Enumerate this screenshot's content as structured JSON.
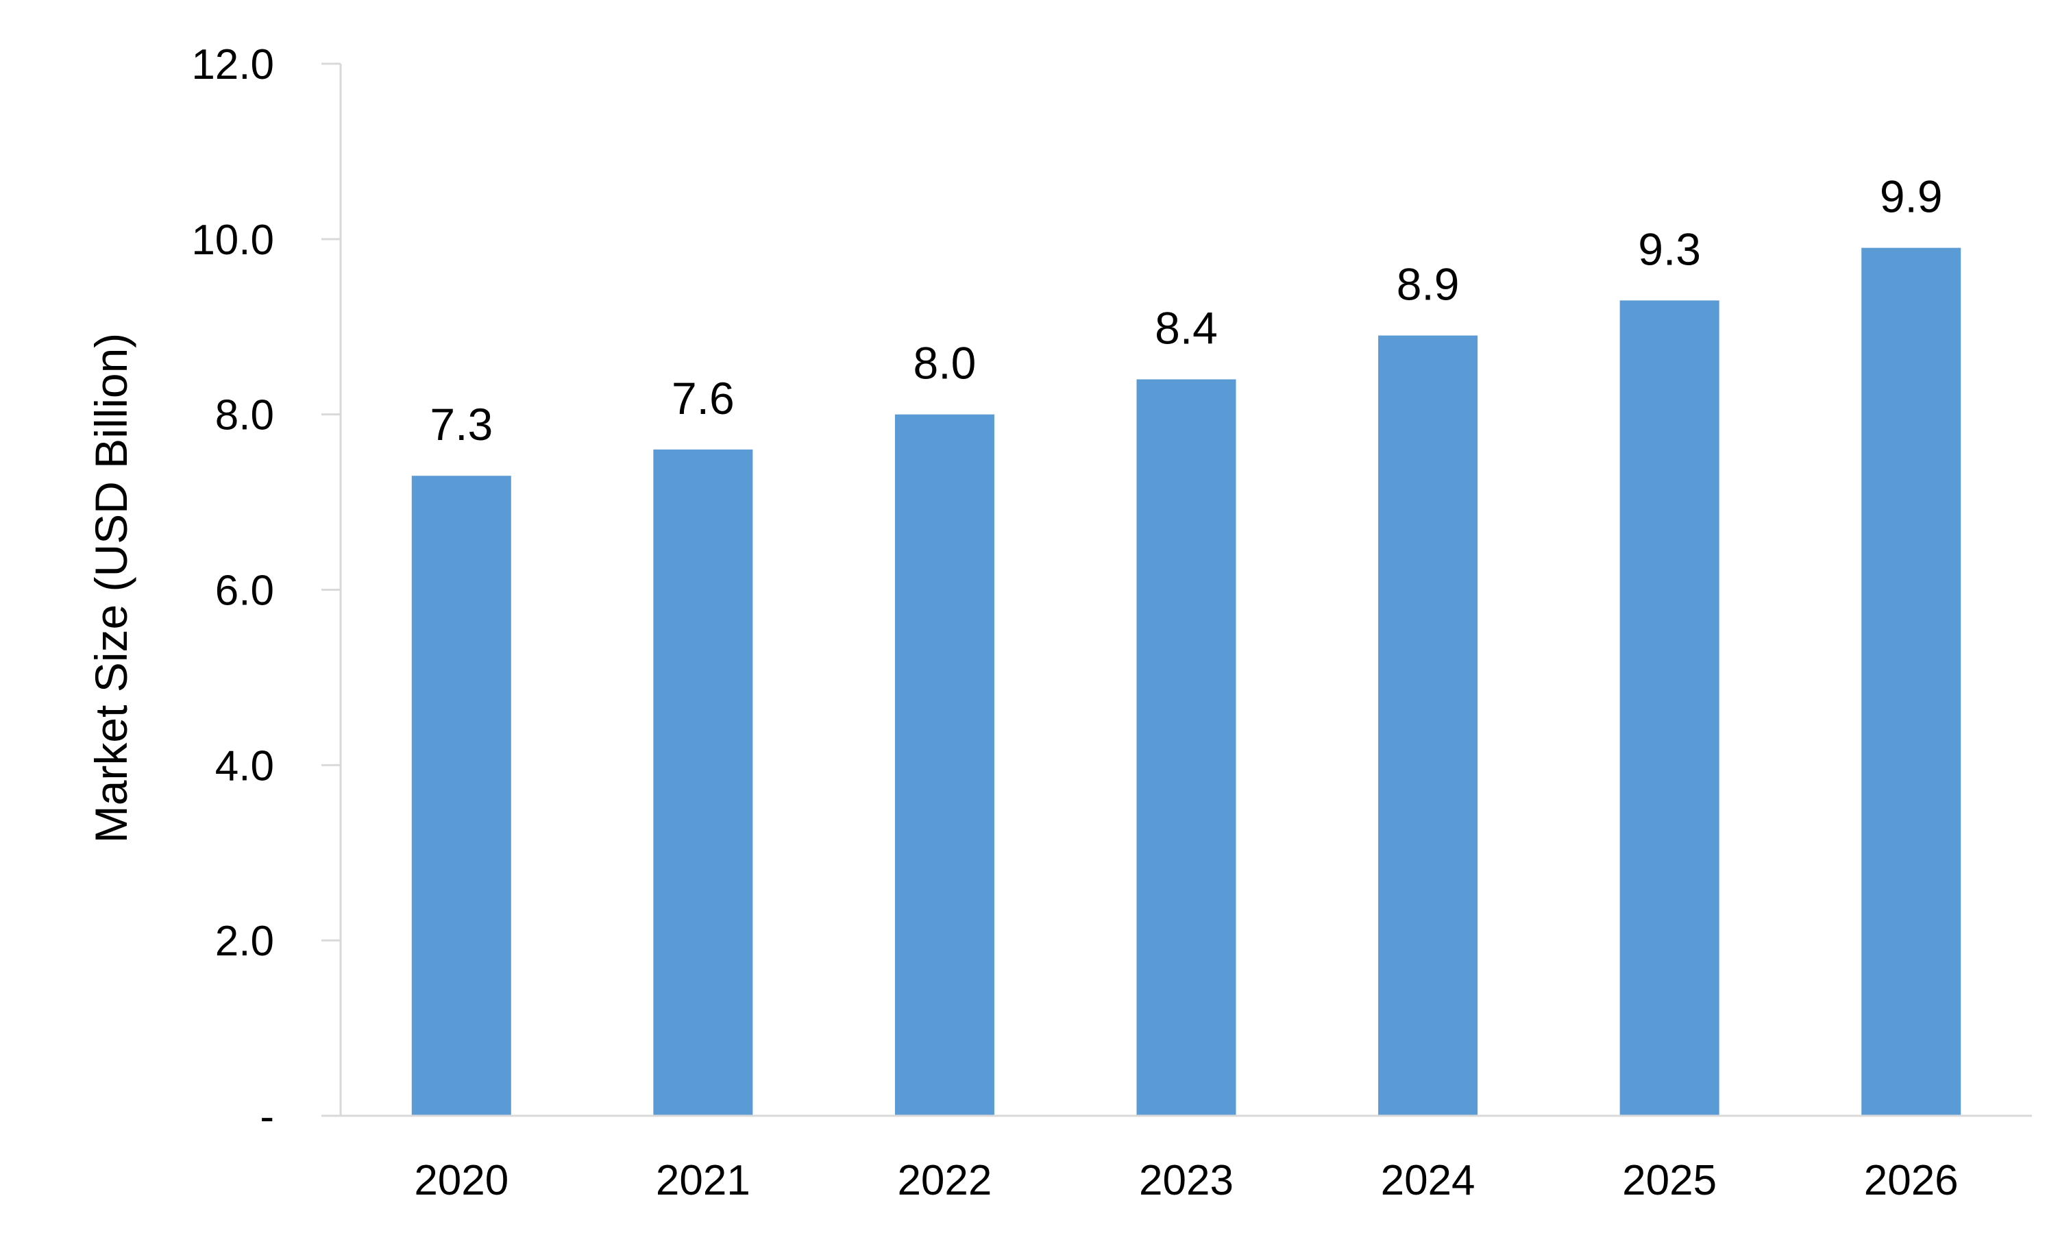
{
  "chart_data": {
    "type": "bar",
    "categories": [
      "2020",
      "2021",
      "2022",
      "2023",
      "2024",
      "2025",
      "2026"
    ],
    "values": [
      7.3,
      7.6,
      8.0,
      8.4,
      8.9,
      9.3,
      9.9
    ],
    "data_labels": [
      "7.3",
      "7.6",
      "8.0",
      "8.4",
      "8.9",
      "9.3",
      "9.9"
    ],
    "title": "",
    "xlabel": "",
    "ylabel": "Market Size (USD Billion)",
    "ylim": [
      0,
      12
    ],
    "yticks": [
      0,
      2,
      4,
      6,
      8,
      10,
      12
    ],
    "ytick_labels": [
      "-",
      "2.0",
      "4.0",
      "6.0",
      "8.0",
      "10.0",
      "12.0"
    ],
    "bar_color": "#5b9bd5",
    "grid": false,
    "legend": "none"
  }
}
